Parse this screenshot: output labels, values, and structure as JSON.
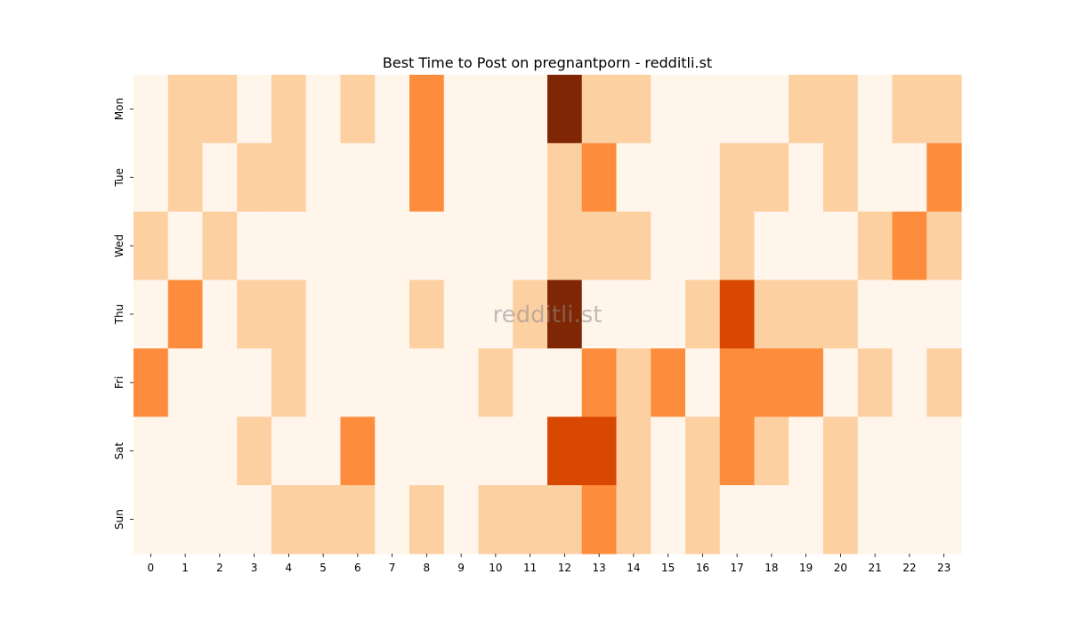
{
  "chart_data": {
    "type": "heatmap",
    "title": "Best Time to Post on pregnantporn - redditli.st",
    "watermark": "redditli.st",
    "x_categories": [
      "0",
      "1",
      "2",
      "3",
      "4",
      "5",
      "6",
      "7",
      "8",
      "9",
      "10",
      "11",
      "12",
      "13",
      "14",
      "15",
      "16",
      "17",
      "18",
      "19",
      "20",
      "21",
      "22",
      "23"
    ],
    "y_categories": [
      "Mon",
      "Tue",
      "Wed",
      "Thu",
      "Fri",
      "Sat",
      "Sun"
    ],
    "color_scale": [
      "#fff5eb",
      "#fdd0a2",
      "#fd8d3c",
      "#d94801",
      "#7f2704"
    ],
    "values": [
      [
        0,
        1,
        1,
        0,
        1,
        0,
        1,
        0,
        2,
        0,
        0,
        0,
        4,
        1,
        1,
        0,
        0,
        0,
        0,
        1,
        1,
        0,
        1,
        1
      ],
      [
        0,
        1,
        0,
        1,
        1,
        0,
        0,
        0,
        2,
        0,
        0,
        0,
        1,
        2,
        0,
        0,
        0,
        1,
        1,
        0,
        1,
        0,
        0,
        2
      ],
      [
        1,
        0,
        1,
        0,
        0,
        0,
        0,
        0,
        0,
        0,
        0,
        0,
        1,
        1,
        1,
        0,
        0,
        1,
        0,
        0,
        0,
        1,
        2,
        1
      ],
      [
        0,
        2,
        0,
        1,
        1,
        0,
        0,
        0,
        1,
        0,
        0,
        1,
        4,
        0,
        0,
        0,
        1,
        3,
        1,
        1,
        1,
        0,
        0,
        0
      ],
      [
        2,
        0,
        0,
        0,
        1,
        0,
        0,
        0,
        0,
        0,
        1,
        0,
        0,
        2,
        1,
        2,
        0,
        2,
        2,
        2,
        0,
        1,
        0,
        1
      ],
      [
        0,
        0,
        0,
        1,
        0,
        0,
        2,
        0,
        0,
        0,
        0,
        0,
        3,
        3,
        1,
        0,
        1,
        2,
        1,
        0,
        1,
        0,
        0,
        0
      ],
      [
        0,
        0,
        0,
        0,
        1,
        1,
        1,
        0,
        1,
        0,
        1,
        1,
        1,
        2,
        1,
        0,
        1,
        0,
        0,
        0,
        1,
        0,
        0,
        0
      ]
    ],
    "grid": false,
    "legend": "none"
  }
}
